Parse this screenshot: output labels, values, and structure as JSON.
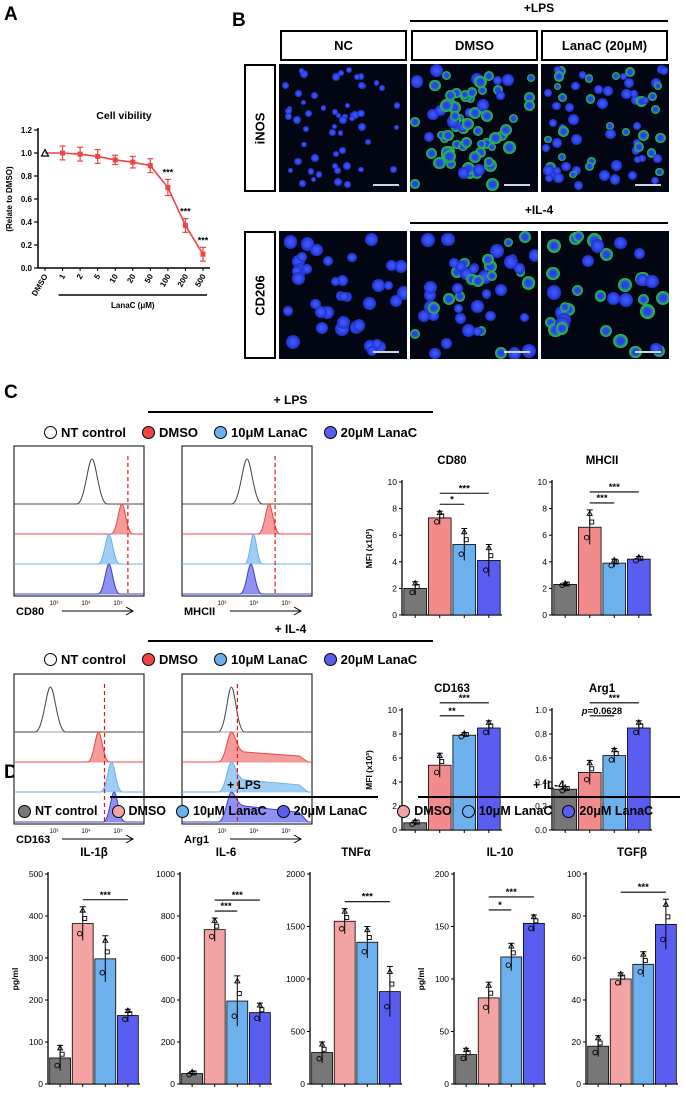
{
  "panel_labels": {
    "a": "A",
    "b": "B",
    "c": "C",
    "d": "D"
  },
  "colors": {
    "red": "#ef4444",
    "pink": "#f4a3a3",
    "lightblue": "#6cb0ee",
    "blue": "#5a5ef0",
    "gray": "#777777",
    "green": "#27c43a",
    "nucleus": "#2a3ff5"
  },
  "panel_b": {
    "lps_label": "+LPS",
    "il4_label": "+IL-4",
    "col_headers": [
      "NC",
      "DMSO",
      "LanaC (20μM)"
    ],
    "row_labels": [
      "iNOS",
      "CD206"
    ]
  },
  "panel_c": {
    "lps_label": "+ LPS",
    "il4_label": "+ IL-4",
    "legend": [
      "NT control",
      "DMSO",
      "10μM LanaC",
      "20μM LanaC"
    ],
    "histograms": [
      {
        "marker": "CD80"
      },
      {
        "marker": "MHCII"
      },
      {
        "marker": "CD163"
      },
      {
        "marker": "Arg1"
      }
    ]
  },
  "panel_d": {
    "lps_label": "+ LPS",
    "il4_label": "+ IL-4",
    "legend_lps": [
      "NT control",
      "DMSO",
      "10μM LanaC",
      "20μM LanaC"
    ],
    "legend_il4": [
      "DMSO",
      "10μM LanaC",
      "20μM LanaC"
    ]
  },
  "chart_data": [
    {
      "id": "viability",
      "type": "line",
      "title": "Cell vibility",
      "xlabel": "LanaC (μM)",
      "ylabel": "(Relate to DMSO)",
      "categories": [
        "DMSO",
        "1",
        "2",
        "5",
        "10",
        "20",
        "50",
        "100",
        "200",
        "500"
      ],
      "values": [
        1.0,
        1.0,
        0.99,
        0.97,
        0.94,
        0.92,
        0.89,
        0.7,
        0.37,
        0.12
      ],
      "errors": [
        0.0,
        0.06,
        0.06,
        0.06,
        0.04,
        0.05,
        0.06,
        0.07,
        0.06,
        0.06
      ],
      "ylim": [
        0,
        1.2
      ],
      "yticks": [
        "0.0",
        "0.2",
        "0.4",
        "0.6",
        "0.8",
        "1.0",
        "1.2"
      ],
      "significance": [
        {
          "index": 7,
          "label": "***"
        },
        {
          "index": 8,
          "label": "***"
        },
        {
          "index": 9,
          "label": "***"
        }
      ]
    },
    {
      "id": "cd80",
      "type": "bar",
      "title": "CD80",
      "ylabel": "MFI (x10³)",
      "categories": [
        "NT control",
        "DMSO",
        "10μM LanaC",
        "20μM LanaC"
      ],
      "values": [
        2.0,
        7.3,
        5.3,
        4.1
      ],
      "errors": [
        0.5,
        0.5,
        1.2,
        1.2
      ],
      "ylim": [
        0,
        10
      ],
      "yticks": [
        "0",
        "2",
        "4",
        "6",
        "8",
        "10"
      ],
      "significance": [
        {
          "from": 1,
          "to": 2,
          "label": "*"
        },
        {
          "from": 1,
          "to": 3,
          "label": "***"
        }
      ]
    },
    {
      "id": "mhcii",
      "type": "bar",
      "title": "MHCII",
      "ylabel": "",
      "categories": [
        "NT control",
        "DMSO",
        "10μM LanaC",
        "20μM LanaC"
      ],
      "values": [
        2.3,
        6.6,
        3.9,
        4.2
      ],
      "errors": [
        0.1,
        1.3,
        0.3,
        0.2
      ],
      "ylim": [
        0,
        10
      ],
      "yticks": [
        "0",
        "2",
        "4",
        "6",
        "8",
        "10"
      ],
      "significance": [
        {
          "from": 1,
          "to": 2,
          "label": "***"
        },
        {
          "from": 1,
          "to": 3,
          "label": "***"
        }
      ]
    },
    {
      "id": "cd163",
      "type": "bar",
      "title": "CD163",
      "ylabel": "MFI (x10³)",
      "categories": [
        "NT control",
        "DMSO",
        "10μM LanaC",
        "20μM LanaC"
      ],
      "values": [
        0.6,
        5.4,
        7.9,
        8.5
      ],
      "errors": [
        0.2,
        1.0,
        0.2,
        0.6
      ],
      "ylim": [
        0,
        10
      ],
      "yticks": [
        "0",
        "2",
        "4",
        "6",
        "8",
        "10"
      ],
      "significance": [
        {
          "from": 1,
          "to": 2,
          "label": "**"
        },
        {
          "from": 1,
          "to": 3,
          "label": "***"
        }
      ]
    },
    {
      "id": "arg1",
      "type": "bar",
      "title": "Arg1",
      "ylabel": "",
      "categories": [
        "NT control",
        "DMSO",
        "10μM LanaC",
        "20μM LanaC"
      ],
      "values": [
        0.34,
        0.48,
        0.62,
        0.85
      ],
      "errors": [
        0.02,
        0.1,
        0.06,
        0.06
      ],
      "ylim": [
        0,
        1.0
      ],
      "yticks": [
        "0.0",
        "0.2",
        "0.4",
        "0.6",
        "0.8",
        "1.0"
      ],
      "significance": [
        {
          "from": 1,
          "to": 2,
          "label": "p=0.0628",
          "italic_p": true
        },
        {
          "from": 1,
          "to": 3,
          "label": "***"
        }
      ]
    },
    {
      "id": "il1b",
      "type": "bar",
      "title": "IL-1β",
      "ylabel": "pg/ml",
      "categories": [
        "NT control",
        "DMSO",
        "10μM LanaC",
        "20μM LanaC"
      ],
      "values": [
        62,
        382,
        298,
        163
      ],
      "errors": [
        30,
        40,
        55,
        15
      ],
      "ylim": [
        0,
        500
      ],
      "yticks": [
        "0",
        "100",
        "200",
        "300",
        "400",
        "500"
      ],
      "significance": [
        {
          "from": 1,
          "to": 3,
          "label": "***"
        }
      ]
    },
    {
      "id": "il6",
      "type": "bar",
      "title": "IL-6",
      "ylabel": "",
      "categories": [
        "NT control",
        "DMSO",
        "10μM LanaC",
        "20μM LanaC"
      ],
      "values": [
        50,
        735,
        395,
        340
      ],
      "errors": [
        10,
        55,
        120,
        45
      ],
      "ylim": [
        0,
        1000
      ],
      "yticks": [
        "0",
        "200",
        "400",
        "600",
        "800",
        "1000"
      ],
      "significance": [
        {
          "from": 1,
          "to": 2,
          "label": "***"
        },
        {
          "from": 1,
          "to": 3,
          "label": "***"
        }
      ]
    },
    {
      "id": "tnfa",
      "type": "bar",
      "title": "TNFα",
      "ylabel": "",
      "categories": [
        "NT control",
        "DMSO",
        "10μM LanaC",
        "20μM LanaC"
      ],
      "values": [
        300,
        1550,
        1350,
        880
      ],
      "errors": [
        100,
        120,
        150,
        240
      ],
      "ylim": [
        0,
        2000
      ],
      "yticks": [
        "0",
        "500",
        "1000",
        "1500",
        "2000"
      ],
      "significance": [
        {
          "from": 1,
          "to": 3,
          "label": "***"
        }
      ]
    },
    {
      "id": "il10",
      "type": "bar",
      "title": "IL-10",
      "ylabel": "pg/ml",
      "categories": [
        "NT control",
        "DMSO",
        "10μM LanaC",
        "20μM LanaC"
      ],
      "values": [
        28,
        82,
        121,
        153
      ],
      "errors": [
        6,
        15,
        13,
        8
      ],
      "ylim": [
        0,
        200
      ],
      "yticks": [
        "0",
        "50",
        "100",
        "150",
        "200"
      ],
      "significance": [
        {
          "from": 1,
          "to": 2,
          "label": "*"
        },
        {
          "from": 1,
          "to": 3,
          "label": "***"
        }
      ]
    },
    {
      "id": "tgfb",
      "type": "bar",
      "title": "TGFβ",
      "ylabel": "",
      "categories": [
        "NT control",
        "DMSO",
        "10μM LanaC",
        "20μM LanaC"
      ],
      "values": [
        18,
        50,
        57,
        76
      ],
      "errors": [
        5,
        3,
        6,
        12
      ],
      "ylim": [
        0,
        100
      ],
      "yticks": [
        "0",
        "20",
        "40",
        "60",
        "80",
        "100"
      ],
      "significance": [
        {
          "from": 1,
          "to": 3,
          "label": "***"
        }
      ]
    }
  ]
}
